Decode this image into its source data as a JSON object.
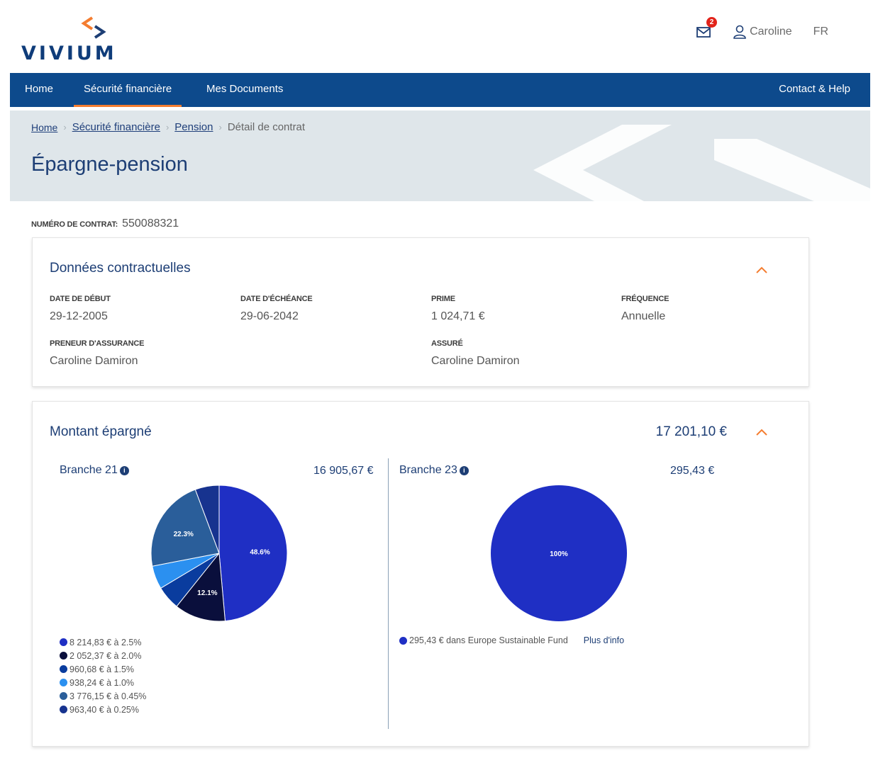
{
  "brand": {
    "name": "VIVIUM",
    "accent": "#f47d30",
    "primary": "#0d4a8c"
  },
  "header": {
    "mail_count": "2",
    "user_name": "Caroline",
    "language": "FR"
  },
  "nav": {
    "items": [
      {
        "label": "Home"
      },
      {
        "label": "Sécurité financière",
        "active": true
      },
      {
        "label": "Mes Documents"
      }
    ],
    "right": "Contact & Help"
  },
  "breadcrumb": [
    "Home",
    "Sécurité financière",
    "Pension",
    "Détail de contrat"
  ],
  "page_title": "Épargne-pension",
  "contract": {
    "label": "NUMÉRO DE CONTRAT:",
    "number": "550088321"
  },
  "contract_data": {
    "title": "Données contractuelles",
    "fields": [
      {
        "label": "DATE DE DÉBUT",
        "value": "29-12-2005"
      },
      {
        "label": "DATE D'ÉCHÉANCE",
        "value": "29-06-2042"
      },
      {
        "label": "PRIME",
        "value": "1 024,71 €"
      },
      {
        "label": "FRÉQUENCE",
        "value": "Annuelle"
      },
      {
        "label": "PRENEUR D'ASSURANCE",
        "value": "Caroline Damiron"
      },
      {
        "label": "ASSURÉ",
        "value": "Caroline Damiron"
      }
    ]
  },
  "savings": {
    "title": "Montant épargné",
    "total": "17 201,10 €",
    "branch21": {
      "title": "Branche 21",
      "amount": "16 905,67 €",
      "legend": [
        {
          "text": "8 214,83 € à 2.5%",
          "color": "#1f2fc4"
        },
        {
          "text": "2 052,37 € à 2.0%",
          "color": "#0a0f3c"
        },
        {
          "text": "960,68 € à 1.5%",
          "color": "#0a3c9e"
        },
        {
          "text": "938,24 € à 1.0%",
          "color": "#2b90f0"
        },
        {
          "text": "3 776,15 € à 0.45%",
          "color": "#2a5e9a"
        },
        {
          "text": "963,40 € à 0.25%",
          "color": "#17338f"
        }
      ]
    },
    "branch23": {
      "title": "Branche 23",
      "amount": "295,43 €",
      "legend": [
        {
          "text": "295,43 € dans Europe Sustainable Fund",
          "color": "#1f2fc4"
        }
      ],
      "more_link": "Plus d'info"
    }
  },
  "chart_data": [
    {
      "type": "pie",
      "title": "Branche 21",
      "categories": [
        "8 214,83 € à 2.5%",
        "2 052,37 € à 2.0%",
        "960,68 € à 1.5%",
        "938,24 € à 1.0%",
        "3 776,15 € à 0.45%",
        "963,40 € à 0.25%"
      ],
      "values": [
        8214.83,
        2052.37,
        960.68,
        938.24,
        3776.15,
        963.4
      ],
      "colors": [
        "#1f2fc4",
        "#0a0f3c",
        "#0a3c9e",
        "#2b90f0",
        "#2a5e9a",
        "#17338f"
      ],
      "slice_labels": [
        "48.6%",
        "12.1%",
        "",
        "",
        "22.3%",
        ""
      ]
    },
    {
      "type": "pie",
      "title": "Branche 23",
      "categories": [
        "295,43 € dans Europe Sustainable Fund"
      ],
      "values": [
        295.43
      ],
      "colors": [
        "#1f2fc4"
      ],
      "slice_labels": [
        "100%"
      ]
    }
  ]
}
